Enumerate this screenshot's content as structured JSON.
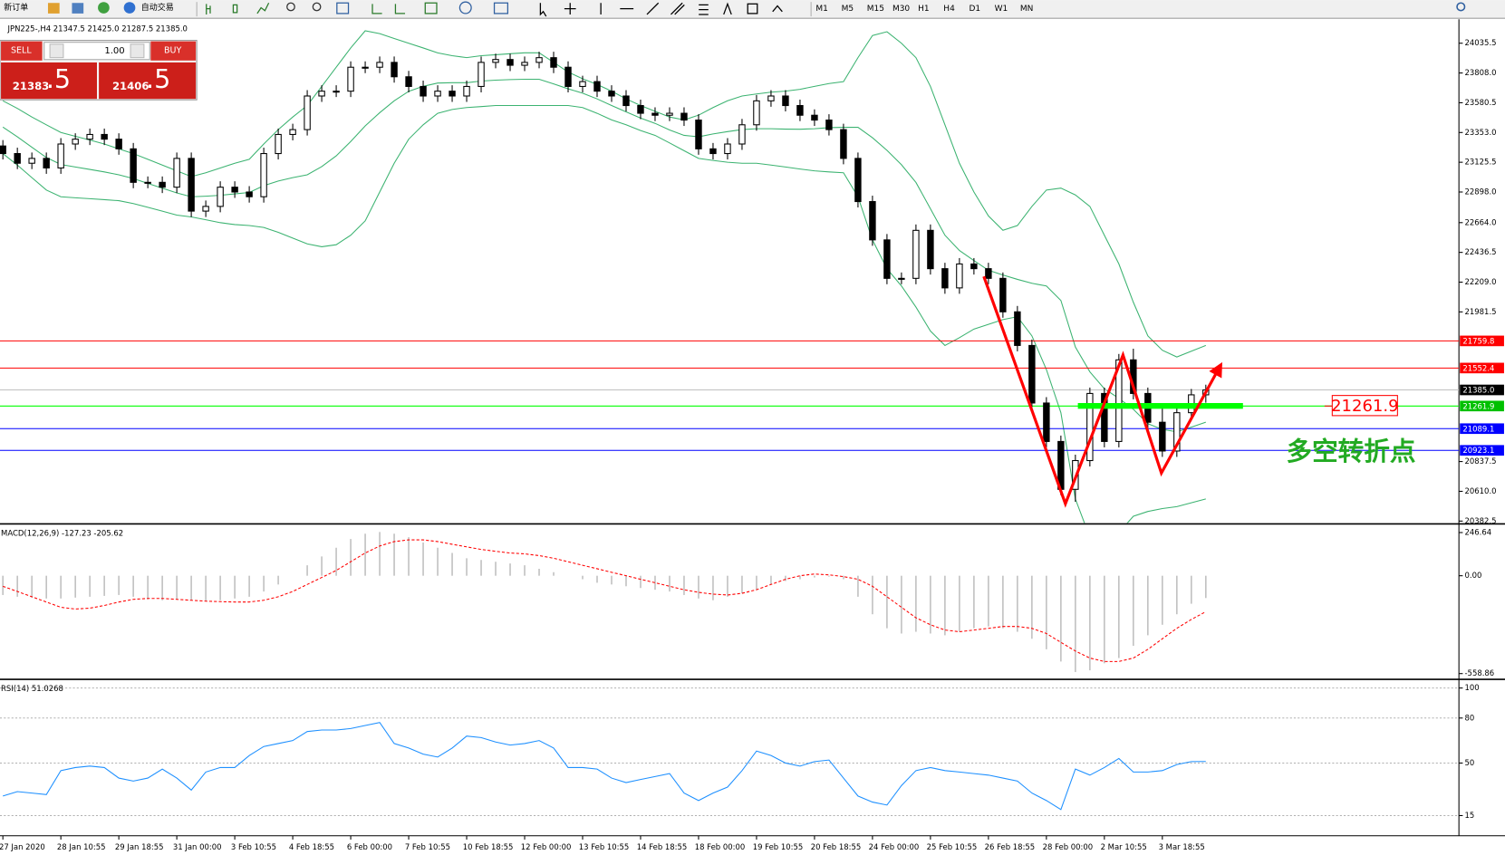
{
  "toolbar": {
    "new_order": "新订单",
    "auto_trading": "自动交易",
    "periods": [
      "M1",
      "M5",
      "M15",
      "M30",
      "H1",
      "H4",
      "D1",
      "W1",
      "MN"
    ]
  },
  "trade_panel": {
    "sell": "SELL",
    "buy": "BUY",
    "volume": "1.00",
    "bid_main": "21383",
    "bid_frac": ".5",
    "ask_main": "21406",
    "ask_frac": ".5"
  },
  "chart_data": [
    {
      "type": "candlestick",
      "title": "JPN225-,H4  21347.5 21425.0 21287.5 21385.0",
      "categories": [
        "27 Jan 2020",
        null,
        null,
        null,
        "28 Jan 10:55",
        null,
        null,
        null,
        "29 Jan 18:55",
        null,
        null,
        null,
        "31 Jan 00:00",
        null,
        null,
        null,
        "3 Feb 10:55",
        null,
        null,
        null,
        "4 Feb 18:55",
        null,
        null,
        null,
        "6 Feb 00:00",
        null,
        null,
        null,
        "7 Feb 10:55",
        null,
        null,
        null,
        "10 Feb 18:55",
        null,
        null,
        null,
        "12 Feb 00:00",
        null,
        null,
        null,
        "13 Feb 10:55",
        null,
        null,
        null,
        "14 Feb 18:55",
        null,
        null,
        null,
        "18 Feb 00:00",
        null,
        null,
        null,
        "19 Feb 10:55",
        null,
        null,
        null,
        "20 Feb 18:55",
        null,
        null,
        null,
        "24 Feb 00:00",
        null,
        null,
        null,
        "25 Feb 10:55",
        null,
        null,
        null,
        "26 Feb 18:55",
        null,
        null,
        null,
        "28 Feb 00:00",
        null,
        null,
        null,
        "2 Mar 10:55",
        null,
        null,
        null,
        "3 Mar 18:55",
        null,
        null,
        null
      ],
      "open": [
        23250,
        23192,
        23118,
        23155,
        23082,
        23265,
        23302,
        23338,
        23302,
        23228,
        22972,
        22972,
        22935,
        23155,
        22752,
        22788,
        22935,
        22898,
        22862,
        23192,
        23338,
        23375,
        23632,
        23669,
        23669,
        23852,
        23852,
        23889,
        23779,
        23705,
        23632,
        23669,
        23632,
        23705,
        23889,
        23911,
        23867,
        23889,
        23925,
        23852,
        23705,
        23742,
        23669,
        23632,
        23559,
        23500,
        23485,
        23500,
        23448,
        23228,
        23192,
        23265,
        23412,
        23595,
        23632,
        23559,
        23485,
        23448,
        23375,
        23155,
        22825,
        22532,
        22238,
        22238,
        22605,
        22312,
        22165,
        22348,
        22312,
        22238,
        21982,
        21725,
        21285,
        20991,
        20625,
        20845,
        21358,
        20991,
        21615,
        21358,
        21138,
        20918,
        21211,
        21347.5
      ],
      "high": [
        23295,
        23237,
        23200,
        23200,
        23310,
        23347,
        23383,
        23383,
        23347,
        23273,
        23017,
        23017,
        23200,
        23200,
        22833,
        22980,
        22980,
        22943,
        23237,
        23383,
        23420,
        23677,
        23714,
        23714,
        23897,
        23897,
        23934,
        23934,
        23824,
        23750,
        23714,
        23714,
        23750,
        23934,
        23956,
        23956,
        23934,
        23970,
        23970,
        23897,
        23787,
        23787,
        23714,
        23677,
        23604,
        23545,
        23545,
        23545,
        23493,
        23273,
        23310,
        23457,
        23640,
        23677,
        23677,
        23604,
        23530,
        23493,
        23420,
        23200,
        22870,
        22577,
        22283,
        22650,
        22650,
        22357,
        22393,
        22393,
        22357,
        22283,
        22027,
        21770,
        21330,
        21036,
        20890,
        21403,
        21403,
        21660,
        21700,
        21403,
        21256,
        21256,
        21392.5,
        21425
      ],
      "low": [
        23147,
        23073,
        23073,
        23037,
        23037,
        23220,
        23257,
        23257,
        23183,
        22927,
        22927,
        22890,
        22890,
        22707,
        22707,
        22743,
        22853,
        22817,
        22817,
        23147,
        23293,
        23330,
        23587,
        23624,
        23624,
        23807,
        23807,
        23734,
        23660,
        23587,
        23587,
        23587,
        23587,
        23660,
        23844,
        23822,
        23822,
        23844,
        23807,
        23660,
        23660,
        23624,
        23587,
        23514,
        23455,
        23440,
        23440,
        23403,
        23183,
        23147,
        23147,
        23220,
        23367,
        23550,
        23514,
        23440,
        23403,
        23330,
        23110,
        22780,
        22487,
        22193,
        22193,
        22193,
        22267,
        22120,
        22120,
        22267,
        22193,
        21937,
        21680,
        21240,
        20946,
        20580,
        20530,
        20800,
        20946,
        20946,
        21313,
        21093,
        20873,
        20873,
        21166,
        21287.5
      ],
      "close": [
        23192,
        23118,
        23155,
        23082,
        23265,
        23302,
        23338,
        23302,
        23228,
        22972,
        22972,
        22935,
        23155,
        22752,
        22788,
        22935,
        22898,
        22862,
        23192,
        23338,
        23375,
        23632,
        23669,
        23669,
        23852,
        23852,
        23889,
        23779,
        23705,
        23632,
        23669,
        23632,
        23705,
        23889,
        23911,
        23867,
        23889,
        23925,
        23852,
        23705,
        23742,
        23669,
        23632,
        23559,
        23500,
        23485,
        23500,
        23448,
        23228,
        23192,
        23265,
        23412,
        23595,
        23632,
        23559,
        23485,
        23448,
        23375,
        23155,
        22825,
        22532,
        22238,
        22238,
        22605,
        22312,
        22165,
        22348,
        22312,
        22238,
        21982,
        21725,
        21285,
        20991,
        20625,
        20845,
        21358,
        20991,
        21615,
        21358,
        21138,
        20918,
        21211,
        21347.5,
        21385
      ],
      "up_color": "#ffffff",
      "down_color": "#000000",
      "wick_color": "#000000",
      "bands": {
        "color": "#3cb371",
        "upper": [
          23595,
          23537,
          23471,
          23412,
          23353,
          23324,
          23295,
          23265,
          23228,
          23192,
          23148,
          23104,
          23060,
          23016,
          23045,
          23082,
          23118,
          23148,
          23265,
          23375,
          23471,
          23559,
          23705,
          23852,
          23999,
          24131,
          24109,
          24072,
          24035,
          23999,
          23962,
          23940,
          23925,
          23940,
          23947,
          23955,
          23962,
          23962,
          23889,
          23815,
          23764,
          23720,
          23669,
          23610,
          23559,
          23515,
          23471,
          23449,
          23485,
          23544,
          23595,
          23632,
          23647,
          23661,
          23669,
          23683,
          23705,
          23727,
          23742,
          23925,
          24094,
          24123,
          24035,
          23925,
          23705,
          23412,
          23118,
          22898,
          22715,
          22605,
          22642,
          22788,
          22913,
          22928,
          22876,
          22788,
          22568,
          22348,
          22055,
          21798,
          21688,
          21637,
          21681,
          21725
        ],
        "middle": [
          23394,
          23320,
          23240,
          23162,
          23108,
          23089,
          23071,
          23052,
          23030,
          23001,
          22964,
          22928,
          22891,
          22862,
          22866,
          22873,
          22884,
          22895,
          22946,
          22982,
          23008,
          23030,
          23092,
          23174,
          23284,
          23404,
          23504,
          23595,
          23668,
          23706,
          23731,
          23734,
          23734,
          23746,
          23753,
          23757,
          23760,
          23760,
          23724,
          23687,
          23654,
          23610,
          23559,
          23511,
          23463,
          23423,
          23372,
          23331,
          23320,
          23342,
          23360,
          23375,
          23382,
          23382,
          23379,
          23378,
          23382,
          23390,
          23393,
          23393,
          23313,
          23217,
          23107,
          22971,
          22770,
          22568,
          22451,
          22374,
          22300,
          22264,
          22230,
          22200,
          22180,
          22069,
          21713,
          21523,
          21394,
          21321,
          21237,
          21127,
          21083,
          21065,
          21101,
          21138
        ],
        "lower": [
          23192,
          23104,
          23008,
          22913,
          22862,
          22854,
          22847,
          22840,
          22832,
          22810,
          22781,
          22752,
          22722,
          22708,
          22686,
          22664,
          22649,
          22642,
          22627,
          22590,
          22546,
          22502,
          22480,
          22495,
          22568,
          22678,
          22898,
          23118,
          23302,
          23412,
          23500,
          23529,
          23544,
          23551,
          23559,
          23559,
          23559,
          23559,
          23559,
          23559,
          23544,
          23500,
          23449,
          23412,
          23368,
          23331,
          23273,
          23214,
          23155,
          23140,
          23126,
          23118,
          23118,
          23104,
          23089,
          23074,
          23060,
          23052,
          23045,
          22862,
          22532,
          22312,
          22180,
          22018,
          21835,
          21725,
          21784,
          21850,
          21886,
          21923,
          21945,
          21798,
          21541,
          21211,
          20551,
          20258,
          20221,
          20295,
          20419,
          20456,
          20478,
          20493,
          20522,
          20551
        ]
      },
      "ylim": [
        20368,
        24204
      ],
      "yticks": [
        24035.5,
        {
          "value": 23808,
          "label": "23808.0"
        },
        23580.5,
        {
          "value": 23353,
          "label": "23353.0"
        },
        23125.5,
        {
          "value": 22898,
          "label": "22898.0"
        },
        {
          "value": 22664,
          "label": "22664.0"
        },
        22436.5,
        {
          "value": 22209,
          "label": "22209.0"
        },
        21981.5,
        20837.5,
        {
          "value": 20610,
          "label": "20610.0"
        },
        20382.5
      ],
      "levels": [
        {
          "value": 21759.8,
          "label": "21759.8",
          "color": "#ff0000",
          "line_color": "#ff0000"
        },
        {
          "value": 21552.4,
          "label": "21552.4",
          "color": "#ff0000",
          "line_color": "#ff0000"
        },
        {
          "value": 21385,
          "label": "21385.0",
          "color": "#000000",
          "line_color": "#c0c0c0"
        },
        {
          "value": 21261.9,
          "label": "21261.9",
          "color": "#00c000",
          "line_color": "#00ff00"
        },
        {
          "value": 21089.1,
          "label": "21089.1",
          "color": "#0000ff",
          "line_color": "#0000ff"
        },
        {
          "value": 20923.1,
          "label": "20923.1",
          "color": "#0000ff",
          "line_color": "#0000ff"
        }
      ],
      "callout": {
        "value": 21261.9,
        "label": "21261.9"
      },
      "annotation": "多空转折点"
    },
    {
      "type": "macd",
      "title": "MACD(12,26,9) -127.23 -205.62",
      "histogram": [
        -110,
        -120,
        -125,
        -130,
        -130,
        -125,
        -120,
        -115,
        -110,
        -120,
        -135,
        -140,
        -135,
        -140,
        -145,
        -140,
        -130,
        -120,
        -90,
        -50,
        0,
        60,
        110,
        160,
        210,
        240,
        250,
        240,
        220,
        190,
        160,
        130,
        100,
        90,
        80,
        70,
        60,
        40,
        20,
        0,
        -20,
        -40,
        -50,
        -60,
        -70,
        -80,
        -90,
        -110,
        -130,
        -140,
        -120,
        -100,
        -80,
        -50,
        -30,
        -20,
        -10,
        -5,
        -20,
        -120,
        -220,
        -300,
        -330,
        -320,
        -330,
        -340,
        -320,
        -300,
        -290,
        -300,
        -320,
        -360,
        -420,
        -490,
        -550,
        -540,
        -500,
        -470,
        -400,
        -340,
        -280,
        -220,
        -160,
        -127.23
      ],
      "signal": [
        -60,
        -90,
        -120,
        -150,
        -180,
        -190,
        -185,
        -170,
        -150,
        -135,
        -130,
        -130,
        -135,
        -140,
        -145,
        -148,
        -150,
        -150,
        -140,
        -120,
        -90,
        -50,
        -10,
        30,
        80,
        130,
        170,
        195,
        205,
        205,
        195,
        180,
        165,
        150,
        140,
        130,
        125,
        115,
        100,
        80,
        60,
        40,
        20,
        0,
        -20,
        -40,
        -60,
        -80,
        -95,
        -105,
        -110,
        -100,
        -80,
        -50,
        -20,
        0,
        10,
        5,
        -5,
        -20,
        -60,
        -120,
        -180,
        -240,
        -280,
        -310,
        -320,
        -310,
        -300,
        -290,
        -290,
        -300,
        -330,
        -380,
        -430,
        -470,
        -490,
        -490,
        -470,
        -420,
        -360,
        -300,
        -250,
        -205.62
      ],
      "hist_color": "#c0c0c0",
      "signal_color": "#ff0000",
      "ylim": [
        -580.8,
        285
      ],
      "yticks": [
        246.64,
        {
          "value": 0,
          "label": "0.00"
        },
        -558.86
      ]
    },
    {
      "type": "rsi",
      "title": "RSI(14) 51.0268",
      "values": [
        28,
        31,
        30,
        29,
        45,
        47,
        48,
        47,
        40,
        38,
        40,
        46,
        40,
        32,
        44,
        47,
        47,
        55,
        61,
        63,
        65,
        71,
        72,
        72,
        73,
        75,
        77,
        63,
        60,
        56,
        54,
        60,
        68,
        67,
        64,
        62,
        63,
        65,
        60,
        47,
        47,
        46,
        40,
        37,
        39,
        41,
        43,
        30,
        25,
        30,
        34,
        45,
        58,
        55,
        50,
        48,
        51,
        52,
        40,
        28,
        24,
        22,
        35,
        45,
        47,
        45,
        44,
        43,
        42,
        40,
        38,
        30,
        25,
        19,
        46,
        42,
        47,
        53,
        44,
        44,
        45,
        49,
        51,
        51.0268
      ],
      "color": "#1e90ff",
      "grid": true,
      "ylim": [
        2.2,
        104.5
      ],
      "yticks": [
        100,
        80,
        50,
        15
      ]
    }
  ]
}
